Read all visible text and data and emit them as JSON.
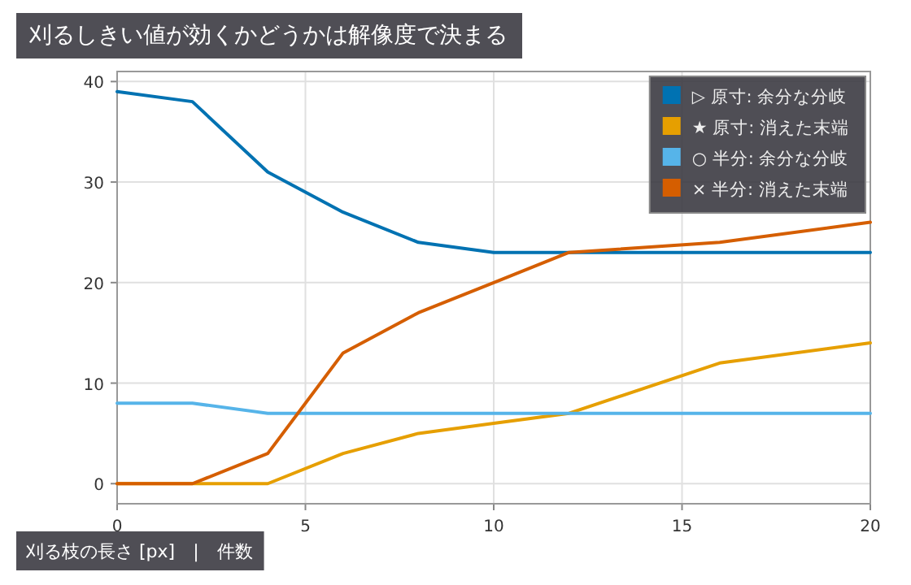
{
  "chart_data": {
    "type": "line",
    "title": "刈るしきい値が効くかどうかは解像度で決まる",
    "xlabel": "刈る枝の長さ [px]　|　件数",
    "x": [
      0,
      2,
      4,
      6,
      8,
      10,
      12,
      16,
      20
    ],
    "series": [
      {
        "name": "▷ 原寸: 余分な分岐",
        "color": "#0072b2",
        "values": [
          39,
          38,
          31,
          27,
          24,
          23,
          23,
          23,
          23
        ]
      },
      {
        "name": "★ 原寸: 消えた末端",
        "color": "#e69f00",
        "values": [
          0,
          0,
          0,
          3,
          5,
          6,
          7,
          12,
          14
        ]
      },
      {
        "name": "○ 半分: 余分な分岐",
        "color": "#56b4e9",
        "values": [
          8,
          8,
          7,
          7,
          7,
          7,
          7,
          7,
          7
        ]
      },
      {
        "name": "× 半分: 消えた末端",
        "color": "#d55e00",
        "values": [
          0,
          0,
          3,
          13,
          17,
          20,
          23,
          24,
          26
        ]
      }
    ],
    "xlim": [
      0,
      20
    ],
    "xticks": [
      0,
      5,
      10,
      15,
      20
    ],
    "ylim": [
      -2,
      41
    ],
    "yticks": [
      0,
      10,
      20,
      30,
      40
    ],
    "grid": true,
    "legend": "top right",
    "marker": "none",
    "line_style": "solid"
  }
}
